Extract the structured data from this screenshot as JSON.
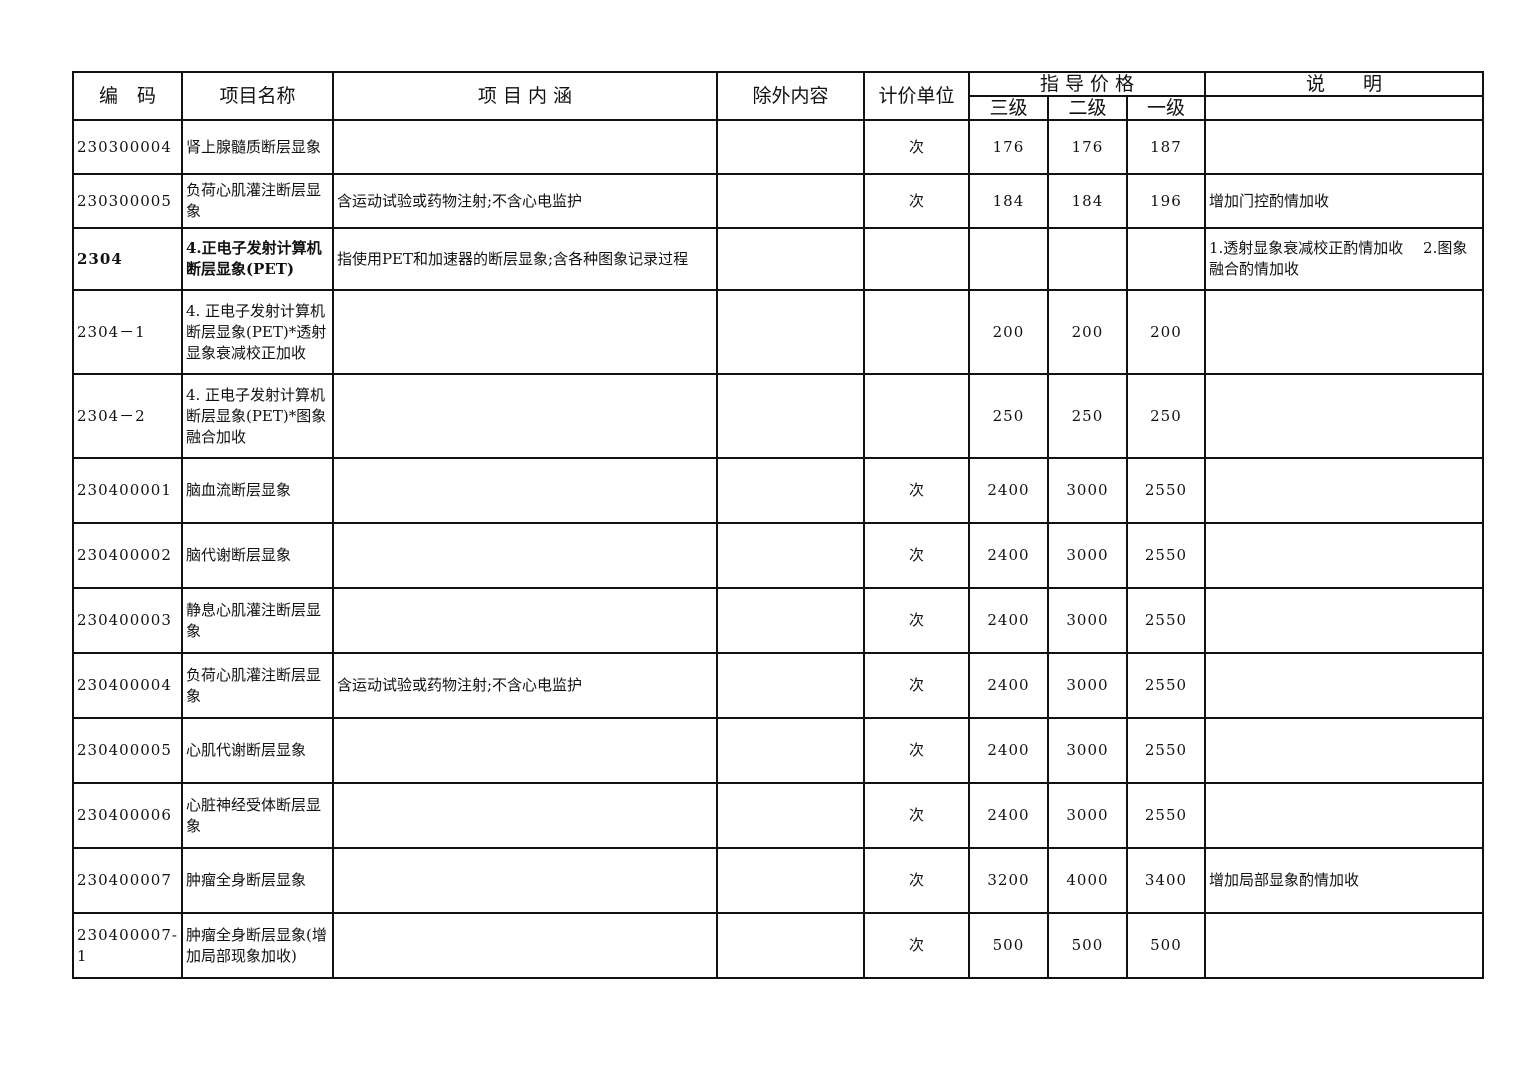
{
  "header": {
    "code": "编　码",
    "name": "项目名称",
    "content": "项 目 内 涵",
    "excluded": "除外内容",
    "unit": "计价单位",
    "price": "指 导 价 格",
    "level3": "三级",
    "level2": "二级",
    "level1": "一级",
    "note": "说　　明"
  },
  "rows": [
    {
      "code": "230300004",
      "name": "肾上腺髓质断层显象",
      "content": "",
      "excluded": "",
      "unit": "次",
      "p3": "176",
      "p2": "176",
      "p1": "187",
      "note": ""
    },
    {
      "code": "230300005",
      "name": "负荷心肌灌注断层显象",
      "content": "含运动试验或药物注射;不含心电监护",
      "excluded": "",
      "unit": "次",
      "p3": "184",
      "p2": "184",
      "p1": "196",
      "note": "增加门控酌情加收"
    },
    {
      "code": "2304",
      "name": "4.正电子发射计算机断层显象(PET)",
      "content": "指使用PET和加速器的断层显象;含各种图象记录过程",
      "excluded": "",
      "unit": "",
      "p3": "",
      "p2": "",
      "p1": "",
      "note": "1.透射显象衰减校正酌情加收　 2.图象融合酌情加收",
      "bold": true
    },
    {
      "code": "2304－1",
      "name": "4. 正电子发射计算机断层显象(PET)*透射显象衰减校正加收",
      "content": "",
      "excluded": "",
      "unit": "",
      "p3": "200",
      "p2": "200",
      "p1": "200",
      "note": ""
    },
    {
      "code": "2304－2",
      "name": "4. 正电子发射计算机断层显象(PET)*图象融合加收",
      "content": "",
      "excluded": "",
      "unit": "",
      "p3": "250",
      "p2": "250",
      "p1": "250",
      "note": ""
    },
    {
      "code": "230400001",
      "name": "脑血流断层显象",
      "content": "",
      "excluded": "",
      "unit": "次",
      "p3": "2400",
      "p2": "3000",
      "p1": "2550",
      "note": ""
    },
    {
      "code": "230400002",
      "name": "脑代谢断层显象",
      "content": "",
      "excluded": "",
      "unit": "次",
      "p3": "2400",
      "p2": "3000",
      "p1": "2550",
      "note": ""
    },
    {
      "code": "230400003",
      "name": "静息心肌灌注断层显象",
      "content": "",
      "excluded": "",
      "unit": "次",
      "p3": "2400",
      "p2": "3000",
      "p1": "2550",
      "note": ""
    },
    {
      "code": "230400004",
      "name": "负荷心肌灌注断层显象",
      "content": "含运动试验或药物注射;不含心电监护",
      "excluded": "",
      "unit": "次",
      "p3": "2400",
      "p2": "3000",
      "p1": "2550",
      "note": ""
    },
    {
      "code": "230400005",
      "name": "心肌代谢断层显象",
      "content": "",
      "excluded": "",
      "unit": "次",
      "p3": "2400",
      "p2": "3000",
      "p1": "2550",
      "note": ""
    },
    {
      "code": "230400006",
      "name": "心脏神经受体断层显象",
      "content": "",
      "excluded": "",
      "unit": "次",
      "p3": "2400",
      "p2": "3000",
      "p1": "2550",
      "note": ""
    },
    {
      "code": "230400007",
      "name": "肿瘤全身断层显象",
      "content": "",
      "excluded": "",
      "unit": "次",
      "p3": "3200",
      "p2": "4000",
      "p1": "3400",
      "note": "增加局部显象酌情加收"
    },
    {
      "code": "230400007-1",
      "name": "肿瘤全身断层显象(增加局部现象加收)",
      "content": "",
      "excluded": "",
      "unit": "次",
      "p3": "500",
      "p2": "500",
      "p1": "500",
      "note": ""
    }
  ]
}
